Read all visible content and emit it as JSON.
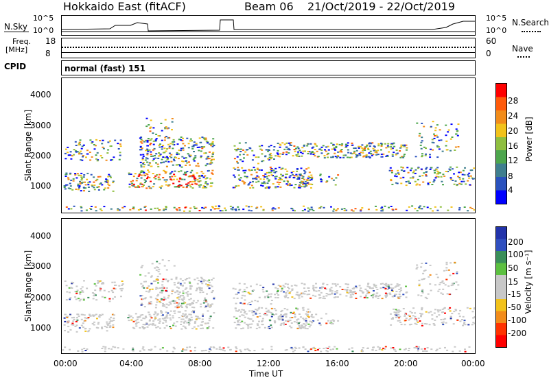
{
  "header": {
    "title": "Hokkaido East (fitACF)",
    "beam": "Beam 06",
    "dates": "21/Oct/2019 - 22/Oct/2019"
  },
  "top_panels": {
    "nsky_label": "N.Sky",
    "nsky_ticks": [
      "10^5",
      "10^0"
    ],
    "nsearch_label": "N.Search",
    "nsearch_ticks": [
      "10^5",
      "10^0"
    ],
    "freq_label_1": "Freq.",
    "freq_label_2": "[MHz]",
    "freq_ticks": [
      "18",
      "8"
    ],
    "nave_label": "Nave",
    "nave_ticks": [
      "60",
      "0"
    ],
    "cpid_label": "CPID",
    "cpid_value": "normal (fast) 151"
  },
  "chart_data": [
    {
      "type": "heatmap",
      "name": "power",
      "ylabel": "Slant Range [km]",
      "yticks": [
        1000,
        2000,
        3000,
        4000
      ],
      "ylim": [
        180,
        4600
      ],
      "xlim": [
        0,
        24
      ],
      "colorbar_label": "Power [dB]",
      "colorbar_ticks": [
        "4",
        "8",
        "12",
        "16",
        "20",
        "24",
        "28"
      ],
      "colorbar_colors": [
        "#0000ff",
        "#2a52be",
        "#3f7f8f",
        "#4da64d",
        "#8fbf3f",
        "#f2c21a",
        "#f28c1a",
        "#ff5a0a",
        "#ff0000"
      ]
    },
    {
      "type": "heatmap",
      "name": "velocity",
      "ylabel": "Slant Range [km]",
      "yticks": [
        1000,
        2000,
        3000,
        4000
      ],
      "ylim": [
        180,
        4600
      ],
      "xlim": [
        0,
        24
      ],
      "xlabel": "Time UT",
      "xticks": [
        "00:00",
        "04:00",
        "08:00",
        "12:00",
        "16:00",
        "20:00",
        "00:00"
      ],
      "colorbar_label": "Velocity [m s⁻¹]",
      "colorbar_ticks": [
        "200",
        "100",
        "50",
        "15",
        "-15",
        "-50",
        "-100",
        "-200"
      ],
      "colorbar_colors": [
        "#2233aa",
        "#3050c0",
        "#3a8f5a",
        "#5cc040",
        "#c8c8c8",
        "#c8c8c8",
        "#f2c21a",
        "#f28c1a",
        "#ff3300",
        "#ff0000"
      ]
    }
  ]
}
